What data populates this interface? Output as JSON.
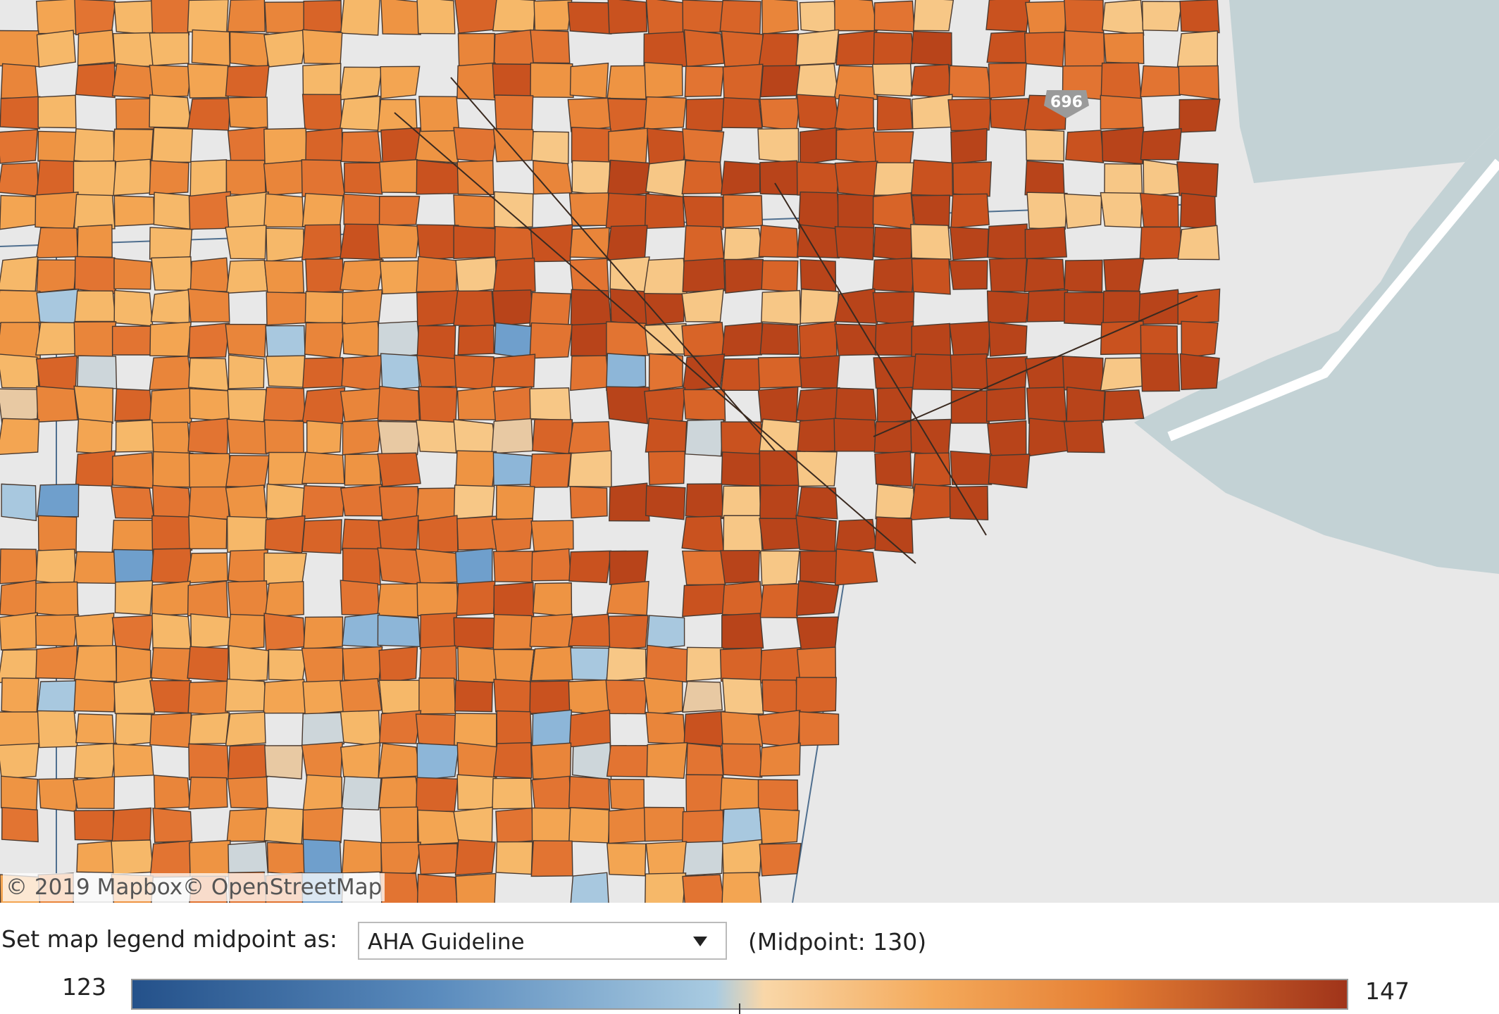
{
  "map": {
    "attribution": "© 2019 Mapbox© OpenStreetMap",
    "road_shield": "696"
  },
  "controls": {
    "label": "Set map legend midpoint as:",
    "selected": "AHA Guideline",
    "midpoint_label": "(Midpoint: 130)"
  },
  "legend": {
    "min": 123,
    "max": 147
  }
}
